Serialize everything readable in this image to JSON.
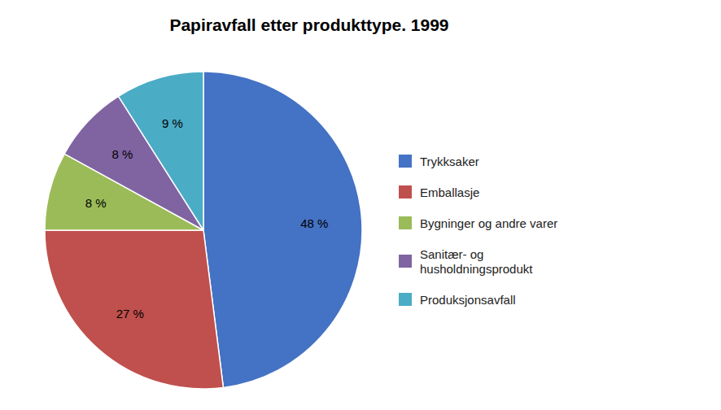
{
  "chart_data": {
    "type": "pie",
    "title": "Papiravfall etter produkttype. 1999",
    "categories": [
      "Trykksaker",
      "Emballasje",
      "Bygninger og andre varer",
      "Sanitær- og\nhusholdningsprodukt",
      "Produksjonsavfall"
    ],
    "values": [
      48,
      27,
      8,
      8,
      9
    ],
    "value_labels": [
      "48 %",
      "27 %",
      "8 %",
      "8 %",
      "9 %"
    ],
    "colors": [
      "#4472C4",
      "#C0504D",
      "#9BBB59",
      "#8064A2",
      "#4BACC6"
    ],
    "data_labels": true,
    "legend": "right"
  }
}
